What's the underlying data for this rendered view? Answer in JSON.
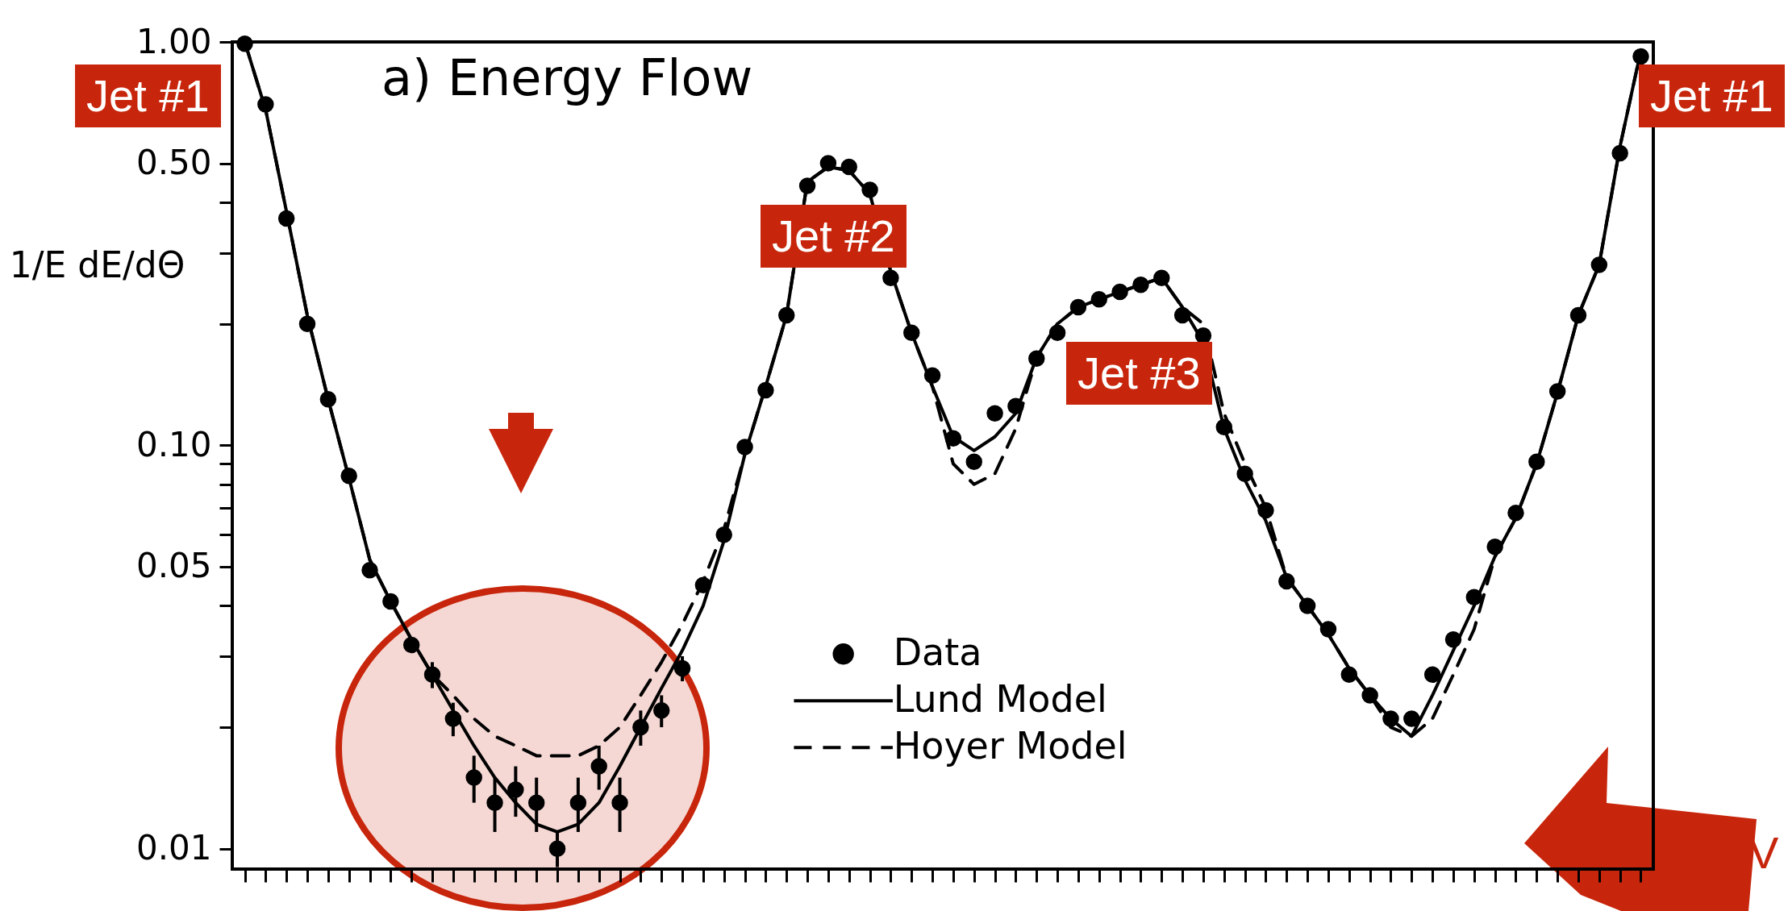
{
  "chart_data": {
    "type": "line",
    "title": "a) Energy Flow",
    "ylabel": "1/E dE/dΘ",
    "categories": [
      null,
      null,
      null,
      null,
      null,
      null,
      null,
      null,
      null,
      null,
      null,
      null,
      null,
      null,
      null,
      null,
      null,
      null,
      null,
      null,
      null,
      null,
      null,
      null,
      null,
      null,
      null,
      null,
      null,
      null,
      null,
      null,
      null,
      null,
      null,
      null,
      null,
      null,
      null,
      null,
      null,
      null,
      null,
      null,
      null,
      null,
      null,
      null,
      null,
      null,
      null,
      null,
      null,
      null,
      null,
      null,
      null,
      null,
      null,
      null,
      null,
      null,
      null,
      null,
      null,
      null,
      null,
      null
    ],
    "series": [
      {
        "name": "Data",
        "type": "scatter",
        "marker": "circle",
        "color": "#000000",
        "values": [
          0.99,
          0.7,
          0.365,
          0.2,
          0.13,
          0.084,
          0.049,
          0.041,
          0.032,
          0.027,
          0.021,
          0.015,
          0.013,
          0.014,
          0.013,
          0.01,
          0.013,
          0.016,
          0.013,
          0.02,
          0.022,
          0.028,
          0.045,
          0.06,
          0.099,
          0.137,
          0.21,
          0.44,
          0.5,
          0.49,
          0.43,
          0.26,
          0.19,
          0.149,
          0.104,
          0.091,
          0.12,
          0.125,
          0.164,
          0.19,
          0.22,
          0.23,
          0.24,
          0.25,
          0.26,
          0.21,
          0.187,
          0.111,
          0.085,
          0.069,
          0.046,
          0.04,
          0.035,
          0.027,
          0.024,
          0.021,
          0.021,
          0.027,
          0.033,
          0.042,
          0.056,
          0.068,
          0.091,
          0.136,
          0.21,
          0.28,
          0.53,
          0.92
        ],
        "errors": [
          null,
          null,
          null,
          null,
          null,
          null,
          null,
          null,
          null,
          0.002,
          0.002,
          0.002,
          0.002,
          0.002,
          0.002,
          0.001,
          0.002,
          0.002,
          0.002,
          0.002,
          0.002,
          0.002,
          null,
          null,
          null,
          null,
          null,
          null,
          null,
          null,
          null,
          null,
          null,
          null,
          null,
          null,
          null,
          null,
          null,
          null,
          null,
          null,
          null,
          null,
          null,
          null,
          null,
          null,
          null,
          null,
          null,
          null,
          null,
          null,
          null,
          null,
          null,
          null,
          null,
          null,
          null,
          null,
          null,
          null,
          null,
          null,
          null,
          null
        ]
      },
      {
        "name": "Lund Model",
        "line_style": "solid",
        "color": "#000000",
        "values": [
          1.0,
          0.68,
          0.38,
          0.21,
          0.13,
          0.083,
          0.052,
          0.041,
          0.033,
          0.027,
          0.022,
          0.018,
          0.015,
          0.013,
          0.0115,
          0.011,
          0.0115,
          0.013,
          0.016,
          0.02,
          0.025,
          0.031,
          0.04,
          0.058,
          0.095,
          0.14,
          0.21,
          0.45,
          0.49,
          0.48,
          0.42,
          0.27,
          0.19,
          0.14,
          0.105,
          0.097,
          0.105,
          0.12,
          0.165,
          0.2,
          0.22,
          0.23,
          0.24,
          0.25,
          0.26,
          0.22,
          0.18,
          0.11,
          0.082,
          0.065,
          0.047,
          0.04,
          0.034,
          0.028,
          0.024,
          0.021,
          0.019,
          0.024,
          0.031,
          0.04,
          0.053,
          0.066,
          0.09,
          0.135,
          0.21,
          0.28,
          0.55,
          0.95
        ]
      },
      {
        "name": "Hoyer Model",
        "line_style": "dashed",
        "color": "#000000",
        "values": [
          1.0,
          0.68,
          0.38,
          0.21,
          0.13,
          0.083,
          0.052,
          0.041,
          0.033,
          0.027,
          0.024,
          0.021,
          0.019,
          0.018,
          0.017,
          0.017,
          0.017,
          0.018,
          0.02,
          0.024,
          0.029,
          0.036,
          0.046,
          0.062,
          0.095,
          0.14,
          0.21,
          0.45,
          0.49,
          0.48,
          0.42,
          0.27,
          0.19,
          0.14,
          0.09,
          0.08,
          0.085,
          0.11,
          0.165,
          0.2,
          0.22,
          0.23,
          0.24,
          0.25,
          0.26,
          0.22,
          0.2,
          0.12,
          0.09,
          0.07,
          0.047,
          0.04,
          0.034,
          0.028,
          0.024,
          0.02,
          0.019,
          0.021,
          0.027,
          0.035,
          0.053,
          0.066,
          0.09,
          0.135,
          0.21,
          0.28,
          0.55,
          0.95
        ]
      }
    ],
    "log": true,
    "ylim": [
      0.0089,
      1.0
    ],
    "yticks": [
      {
        "value": 0.01,
        "label": "0.01"
      },
      {
        "value": 0.02,
        "label": null
      },
      {
        "value": 0.03,
        "label": null
      },
      {
        "value": 0.04,
        "label": null
      },
      {
        "value": 0.05,
        "label": "0.05"
      },
      {
        "value": 0.06,
        "label": null
      },
      {
        "value": 0.07,
        "label": null
      },
      {
        "value": 0.08,
        "label": null
      },
      {
        "value": 0.09,
        "label": null
      },
      {
        "value": 0.1,
        "label": "0.10"
      },
      {
        "value": 0.2,
        "label": null
      },
      {
        "value": 0.3,
        "label": null
      },
      {
        "value": 0.4,
        "label": null
      },
      {
        "value": 0.5,
        "label": "0.50"
      },
      {
        "value": 1.0,
        "label": "1.00"
      }
    ],
    "tick_labels": "y",
    "legend": "bottom",
    "annotations": [
      "Jet #1",
      "Jet #2",
      "Jet #3",
      "Jet #1",
      "V"
    ]
  }
}
